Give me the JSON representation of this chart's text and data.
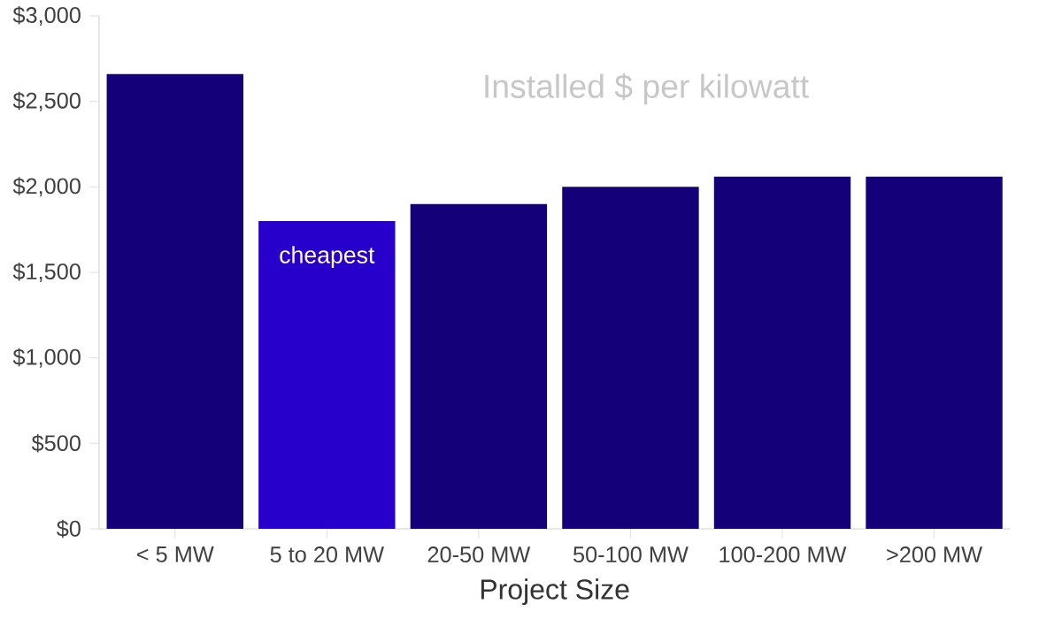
{
  "chart_data": {
    "type": "bar",
    "title": "Installed $ per kilowatt",
    "xlabel": "Project Size",
    "categories": [
      "< 5 MW",
      "5 to 20 MW",
      "20-50 MW",
      "50-100 MW",
      "100-200 MW",
      ">200 MW"
    ],
    "values": [
      2660,
      1800,
      1900,
      2000,
      2060,
      2060
    ],
    "colors": [
      "#140078",
      "#2800cc",
      "#140078",
      "#140078",
      "#140078",
      "#140078"
    ],
    "ylim": [
      0,
      3000
    ],
    "yticks": [
      {
        "value": 0,
        "label": "$0"
      },
      {
        "value": 500,
        "label": "$500"
      },
      {
        "value": 1000,
        "label": "$1,000"
      },
      {
        "value": 1500,
        "label": "$1,500"
      },
      {
        "value": 2000,
        "label": "$2,000"
      },
      {
        "value": 2500,
        "label": "$2,500"
      },
      {
        "value": 3000,
        "label": "$3,000"
      }
    ],
    "annotations": [
      "cheapest"
    ],
    "grid": false
  }
}
